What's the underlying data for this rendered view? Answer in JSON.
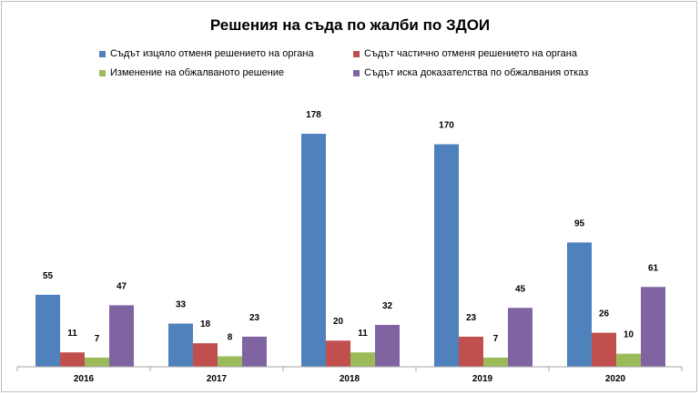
{
  "chart_data": {
    "type": "bar",
    "title": "Решения на съда по жалби по ЗДОИ",
    "categories": [
      "2016",
      "2017",
      "2018",
      "2019",
      "2020"
    ],
    "series": [
      {
        "name": "Съдът изцяло отменя решението на органа",
        "color": "#4f81bd",
        "values": [
          55,
          33,
          178,
          170,
          95
        ]
      },
      {
        "name": "Съдът частично отменя решението на органа",
        "color": "#c0504d",
        "values": [
          11,
          18,
          20,
          23,
          26
        ]
      },
      {
        "name": "Изменение на обжалваното решение",
        "color": "#9bbb59",
        "values": [
          7,
          8,
          11,
          7,
          10
        ]
      },
      {
        "name": "Съдът иска  доказателства по обжалвания отказ",
        "color": "#8064a2",
        "values": [
          47,
          23,
          32,
          45,
          61
        ]
      }
    ],
    "xlabel": "",
    "ylabel": "",
    "ylim": [
      0,
      180
    ],
    "grid": false,
    "legend": "top"
  }
}
